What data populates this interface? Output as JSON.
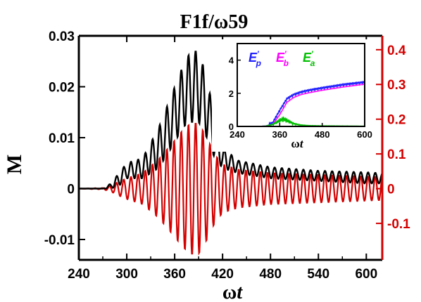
{
  "title": "F1f/ω59",
  "colors": {
    "black_series": "#000000",
    "red_series": "#d40000",
    "right_axis": "#d40000",
    "inset_Ep": "#2020ff",
    "inset_Eb": "#ff00ff",
    "inset_Ea": "#00c000"
  },
  "chart_data": [
    {
      "type": "line",
      "xlabel": "ωt",
      "ylabel": "M",
      "xlim": [
        240,
        620
      ],
      "ylim_left": [
        -0.014,
        0.03
      ],
      "ylim_right": [
        -0.205,
        0.44
      ],
      "x_ticks": [
        "240",
        "300",
        "360",
        "420",
        "480",
        "540",
        "600"
      ],
      "y_ticks_left": [
        "-0.01",
        "0",
        "0.01",
        "0.02",
        "0.03"
      ],
      "y_ticks_right": [
        "-0.1",
        "0",
        "0.1",
        "0.2",
        "0.3",
        "0.4"
      ],
      "grid": false,
      "series": [
        {
          "axis": "left",
          "color": "#000000",
          "oscillation_period": 9,
          "envelope_x": [
            240,
            270,
            280,
            290,
            300,
            320,
            340,
            360,
            370,
            380,
            390,
            400,
            410,
            420,
            440,
            480,
            540,
            600,
            620
          ],
          "envelope_min": [
            0,
            0,
            0,
            0.0005,
            0.002,
            0.002,
            0.004,
            0.009,
            0.012,
            0.013,
            0.013,
            0.01,
            0.006,
            0.004,
            0.003,
            0.002,
            0.0015,
            0.001,
            0.001
          ],
          "envelope_max": [
            0,
            0,
            0.001,
            0.003,
            0.005,
            0.006,
            0.012,
            0.02,
            0.024,
            0.027,
            0.027,
            0.022,
            0.014,
            0.008,
            0.0055,
            0.0042,
            0.0035,
            0.0032,
            0.003
          ]
        },
        {
          "axis": "right",
          "color": "#d40000",
          "oscillation_period": 9,
          "amplitude_x": [
            240,
            270,
            280,
            290,
            300,
            320,
            340,
            360,
            370,
            380,
            390,
            400,
            410,
            420,
            440,
            480,
            540,
            600,
            620
          ],
          "amplitude": [
            0,
            0.002,
            0.008,
            0.02,
            0.03,
            0.045,
            0.085,
            0.14,
            0.17,
            0.19,
            0.19,
            0.15,
            0.1,
            0.07,
            0.055,
            0.045,
            0.04,
            0.035,
            0.033
          ]
        }
      ]
    },
    {
      "type": "line",
      "xlabel": "ωt",
      "xlim": [
        240,
        600
      ],
      "ylim": [
        0,
        5
      ],
      "x_ticks": [
        "240",
        "360",
        "480",
        "600"
      ],
      "y_ticks": [
        "0",
        "2",
        "4"
      ],
      "legend": [
        "E′p",
        "E′b",
        "E′a"
      ],
      "legend_placement": "top",
      "series": [
        {
          "name": "E′p",
          "color": "#2020ff",
          "x": [
            240,
            300,
            320,
            340,
            360,
            380,
            400,
            420,
            440,
            480,
            540,
            600
          ],
          "y": [
            0,
            0,
            0.02,
            0.15,
            0.9,
            1.6,
            1.85,
            2.0,
            2.1,
            2.25,
            2.45,
            2.6
          ]
        },
        {
          "name": "E′b",
          "color": "#ff00ff",
          "x": [
            240,
            300,
            320,
            340,
            360,
            380,
            400,
            420,
            440,
            480,
            540,
            600
          ],
          "y": [
            0,
            0,
            0.02,
            0.12,
            0.7,
            1.45,
            1.75,
            1.92,
            2.02,
            2.18,
            2.38,
            2.55
          ]
        },
        {
          "name": "E′a",
          "color": "#00c000",
          "x": [
            240,
            300,
            320,
            340,
            360,
            370,
            380,
            400,
            420,
            440,
            480,
            540,
            600
          ],
          "y": [
            0,
            0,
            0.02,
            0.15,
            0.45,
            0.55,
            0.45,
            0.2,
            0.1,
            0.06,
            0.04,
            0.03,
            0.02
          ]
        }
      ]
    }
  ],
  "inset_legend_parts": [
    {
      "base": "E",
      "sub": "p",
      "color": "#2020ff"
    },
    {
      "base": "E",
      "sub": "b",
      "color": "#ff00ff"
    },
    {
      "base": "E",
      "sub": "a",
      "color": "#00c000"
    }
  ]
}
